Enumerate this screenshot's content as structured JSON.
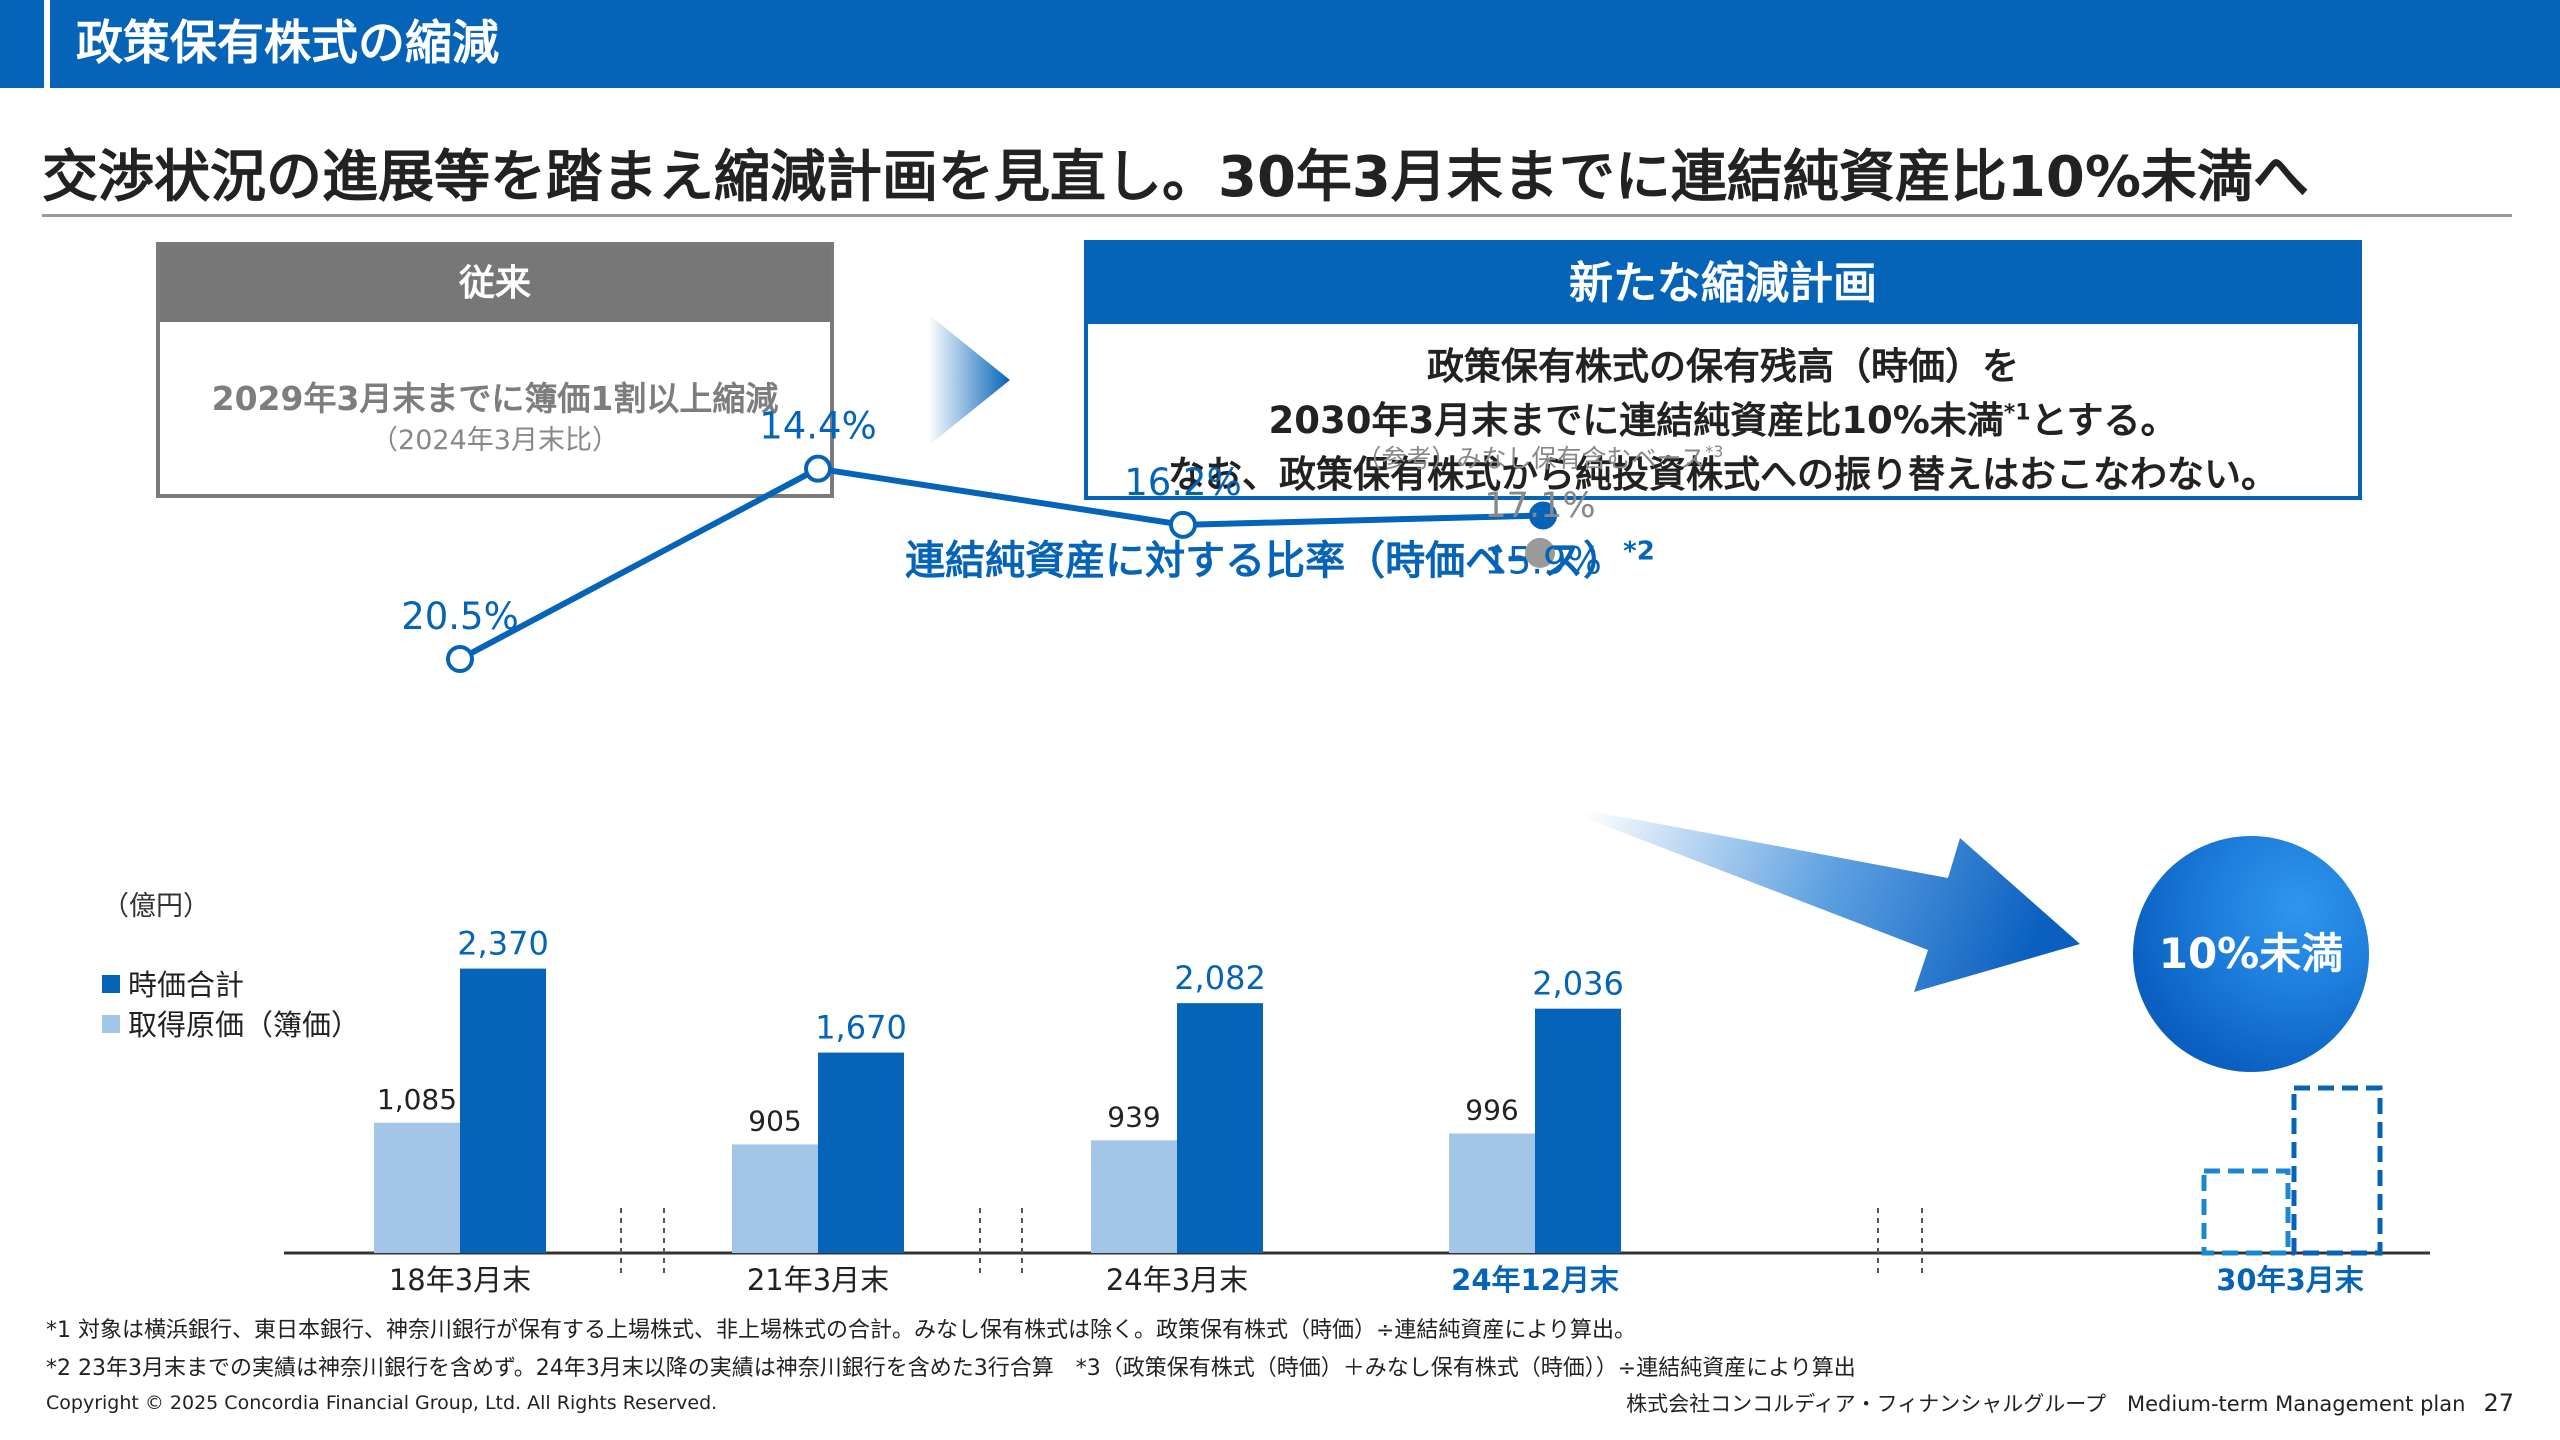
{
  "header": {
    "title": "政策保有株式の縮減"
  },
  "headline": "交渉状況の進展等を踏まえ縮減計画を見直し。30年3月末までに連結純資産比10%未満へ",
  "old_plan": {
    "label": "従来",
    "line1": "2029年3月末までに簿価1割以上縮減",
    "line2": "（2024年3月末比）"
  },
  "new_plan": {
    "label": "新たな縮減計画",
    "line1": "政策保有株式の保有残高（時価）を",
    "line2_a": "2030年3月末までに連結純資産比10%未満",
    "line2_sup": "*1",
    "line2_b": "とする。",
    "line3": "なお、政策保有株式から純投資株式への振り替えはおこなわない。"
  },
  "chart_title": {
    "text": "連結純資産に対する比率（時価ベース）",
    "sup": "*2"
  },
  "unit_label": "（億円）",
  "colors": {
    "brand": "#0563B8",
    "light_bar": "#A3C5E8",
    "gray_point": "#9A9A9A"
  },
  "chart_data": [
    {
      "type": "line",
      "title": "連結純資産に対する比率（時価ベース）*2",
      "x": [
        "18年3月末",
        "21年3月末",
        "24年3月末",
        "24年12月末"
      ],
      "values": [
        20.5,
        14.4,
        16.2,
        15.9
      ],
      "labels": [
        "20.5%",
        "14.4%",
        "16.2%",
        "15.9%"
      ],
      "reference": {
        "label": "（参考）みなし保有含むベース",
        "sup": "*3",
        "x": "24年12月末",
        "value": 17.1,
        "value_label": "17.1%"
      },
      "target": {
        "x": "30年3月末",
        "label": "10%未満"
      }
    },
    {
      "type": "bar",
      "categories": [
        "18年3月末",
        "21年3月末",
        "24年3月末",
        "24年12月末",
        "30年3月末"
      ],
      "highlight_categories": [
        "24年12月末",
        "30年3月末"
      ],
      "series": [
        {
          "name": "取得原価（簿価）",
          "values": [
            1085,
            905,
            939,
            996,
            null
          ],
          "labels": [
            "1,085",
            "905",
            "939",
            "996",
            ""
          ]
        },
        {
          "name": "時価合計",
          "values": [
            2370,
            1670,
            2082,
            2036,
            null
          ],
          "labels": [
            "2,370",
            "1,670",
            "2,082",
            "2,036",
            ""
          ]
        }
      ],
      "ylabel": "（億円）",
      "projected_category": "30年3月末"
    }
  ],
  "footnotes": {
    "n1": "*1 対象は横浜銀行、東日本銀行、神奈川銀行が保有する上場株式、非上場株式の合計。みなし保有株式は除く。政策保有株式（時価）÷連結純資産により算出。",
    "n2": "*2 23年3月末までの実績は神奈川銀行を含めず。24年3月末以降の実績は神奈川銀行を含めた3行合算　*3（政策保有株式（時価）＋みなし保有株式（時価））÷連結純資産により算出"
  },
  "footer": {
    "copyright": "Copyright © 2025 Concordia Financial Group, Ltd. All Rights Reserved.",
    "company": "株式会社コンコルディア・フィナンシャルグループ　Medium-term Management plan",
    "page": "27"
  }
}
